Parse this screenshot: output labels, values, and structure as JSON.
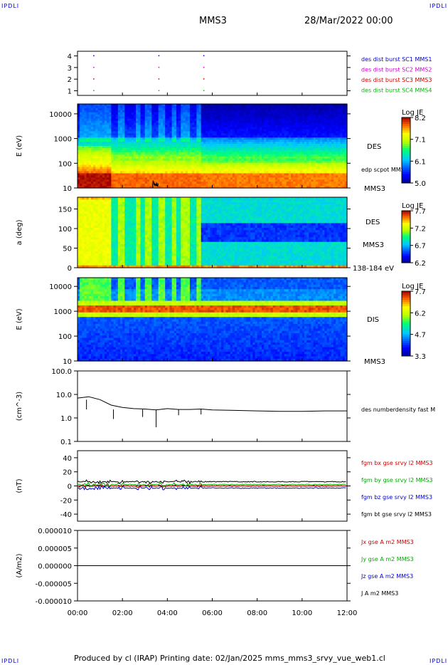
{
  "header": {
    "corner_label": "IPDLI",
    "spacecraft": "MMS3",
    "date": "28/Mar/2022 00:00"
  },
  "footer": {
    "credit": "Produced by cl (IRAP)   Printing date: 02/Jan/2025   mms_mms3_srvy_vue_web1.cl"
  },
  "time_axis": {
    "ticks": [
      "00:00",
      "02:00",
      "04:00",
      "06:00",
      "08:00",
      "10:00",
      "12:00"
    ]
  },
  "chart_data": [
    {
      "id": "burst",
      "type": "scatter",
      "yticks": [
        "1",
        "2",
        "3",
        "4"
      ],
      "ylim": [
        0.6,
        4.4
      ],
      "legend": [
        {
          "text": "des dist burst SC1 MMS1",
          "color": "#0000cc"
        },
        {
          "text": "des dist burst SC2 MMS2",
          "color": "#cc00cc"
        },
        {
          "text": "des dist burst SC3 MMS3",
          "color": "#cc0000"
        },
        {
          "text": "des dist burst SC4 MMS4",
          "color": "#00bb00"
        }
      ],
      "marks_hours": [
        0.6,
        3.5,
        5.5
      ]
    },
    {
      "id": "des_e",
      "type": "heatmap",
      "ylabel": "E (eV)",
      "yticks": [
        "10",
        "100",
        "1000",
        "10000"
      ],
      "right_labels": [
        "DES",
        "edp scpot MMS3",
        "MMS3"
      ],
      "colorbar": {
        "title": "Log JE",
        "ticks": [
          "8.2",
          "7.1",
          "6.1",
          "5.0"
        ]
      }
    },
    {
      "id": "des_pa",
      "type": "heatmap",
      "ylabel": "a (deg)",
      "yticks": [
        "0",
        "50",
        "100",
        "150"
      ],
      "right_labels": [
        "DES",
        "MMS3",
        "138-184 eV"
      ],
      "colorbar": {
        "title": "Log JE",
        "ticks": [
          "7.7",
          "7.2",
          "6.7",
          "6.2"
        ]
      }
    },
    {
      "id": "dis_e",
      "type": "heatmap",
      "ylabel": "E (eV)",
      "yticks": [
        "10",
        "100",
        "1000",
        "10000"
      ],
      "right_labels": [
        "DIS",
        "MMS3"
      ],
      "colorbar": {
        "title": "Log JE",
        "ticks": [
          "7.7",
          "6.2",
          "4.7",
          "3.3"
        ]
      }
    },
    {
      "id": "density",
      "type": "line",
      "ylabel": "(cm^-3)",
      "yticks": [
        "0.1",
        "1.0",
        "10.0",
        "100.0"
      ],
      "ylim": [
        0.1,
        100
      ],
      "legend": [
        {
          "text": "des numberdensity fast M",
          "color": "#000000"
        }
      ],
      "x_hours": [
        0,
        0.5,
        1,
        1.5,
        2,
        2.5,
        3,
        3.5,
        4,
        4.5,
        5,
        5.5,
        6,
        7,
        8,
        9,
        10,
        11,
        12
      ],
      "values": [
        7,
        8,
        6,
        3.5,
        2.8,
        2.5,
        2.4,
        2.2,
        2.5,
        2.3,
        2.3,
        2.4,
        2.2,
        2.1,
        2.0,
        1.9,
        1.9,
        2.0,
        2.0
      ]
    },
    {
      "id": "bfield",
      "type": "line",
      "ylabel": "(nT)",
      "yticks": [
        "-40",
        "-20",
        "0",
        "20",
        "40"
      ],
      "ylim": [
        -50,
        50
      ],
      "legend": [
        {
          "text": "fgm bx gse srvy l2 MMS3",
          "color": "#cc0000"
        },
        {
          "text": "fgm by gse srvy l2 MMS3",
          "color": "#00aa00"
        },
        {
          "text": "fgm bz gse srvy l2 MMS3",
          "color": "#0000cc"
        },
        {
          "text": "fgm bt gse srvy l2 MMS3",
          "color": "#000000"
        }
      ]
    },
    {
      "id": "current",
      "type": "line",
      "ylabel": "(A/m2)",
      "yticks": [
        "-0.000010",
        "-0.000005",
        "0.000000",
        "0.000005",
        "0.000010"
      ],
      "ylim": [
        -1e-05,
        1e-05
      ],
      "legend": [
        {
          "text": "Jx gse A m2 MMS3",
          "color": "#cc0000"
        },
        {
          "text": "Jy gse A m2 MMS3",
          "color": "#00aa00"
        },
        {
          "text": "Jz gse A m2 MMS3",
          "color": "#0000cc"
        },
        {
          "text": "J A m2 MMS3",
          "color": "#000000"
        }
      ]
    }
  ]
}
